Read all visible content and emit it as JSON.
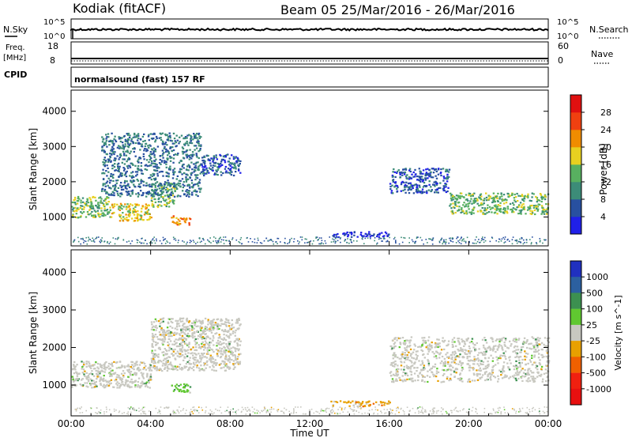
{
  "header": {
    "station": "Kodiak (fitACF)",
    "beam_info": "Beam 05  25/Mar/2016 - 26/Mar/2016"
  },
  "top_panels": {
    "nsky_label": "N.Sky",
    "nsearch_label": "N.Search",
    "freq_label_1": "Freq.",
    "freq_label_2": "[MHz]",
    "nave_label": "Nave",
    "cpid_label": "CPID",
    "noise_ticks_left": [
      "10^5",
      "10^0"
    ],
    "noise_ticks_right": [
      "10^5",
      "10^0"
    ],
    "freq_ticks": [
      "18",
      "8"
    ],
    "nave_ticks": [
      "60",
      "0"
    ],
    "cpid_text": "normalsound (fast) 157 RF"
  },
  "chart_data": [
    {
      "type": "heatmap",
      "name": "power-panel",
      "ylabel": "Slant Range [km]",
      "ylim": [
        180,
        4600
      ],
      "y_ticks": [
        "1000",
        "2000",
        "3000",
        "4000"
      ],
      "colorbar": {
        "label": "Power [dB]",
        "ticks": [
          "4",
          "8",
          "12",
          "16",
          "20",
          "24",
          "28"
        ],
        "colors": [
          "#2020e8",
          "#2850a0",
          "#3c8c78",
          "#58b060",
          "#e8d020",
          "#f08c00",
          "#f04010",
          "#e01010"
        ]
      },
      "regions": [
        {
          "t": [
            0.0,
            2.0
          ],
          "range": [
            1000,
            1600
          ],
          "level": 16
        },
        {
          "t": [
            2.0,
            4.0
          ],
          "range": [
            900,
            1400
          ],
          "level": 20
        },
        {
          "t": [
            4.0,
            5.2
          ],
          "range": [
            1300,
            2000
          ],
          "level": 16
        },
        {
          "t": [
            5.0,
            6.0
          ],
          "range": [
            800,
            1050
          ],
          "level": 24
        },
        {
          "t": [
            1.5,
            6.5
          ],
          "range": [
            1600,
            3400
          ],
          "level": 10
        },
        {
          "t": [
            6.5,
            8.5
          ],
          "range": [
            2200,
            2800
          ],
          "level": 8
        },
        {
          "t": [
            13.0,
            16.0
          ],
          "range": [
            450,
            600
          ],
          "level": 6
        },
        {
          "t": [
            16.0,
            19.0
          ],
          "range": [
            1700,
            2400
          ],
          "level": 8
        },
        {
          "t": [
            19.0,
            24.0
          ],
          "range": [
            1100,
            1700
          ],
          "level": 16
        }
      ]
    },
    {
      "type": "heatmap",
      "name": "velocity-panel",
      "ylabel": "Slant Range [km]",
      "xlabel": "Time UT",
      "ylim": [
        180,
        4600
      ],
      "y_ticks": [
        "1000",
        "2000",
        "3000",
        "4000"
      ],
      "x_ticks": [
        "00:00",
        "04:00",
        "08:00",
        "12:00",
        "16:00",
        "20:00",
        "00:00"
      ],
      "colorbar": {
        "label": "Velocity [m s^-1]",
        "ticks": [
          "1000",
          "500",
          "100",
          "25",
          "-25",
          "-100",
          "-500",
          "-1000"
        ],
        "colors": [
          "#2030c0",
          "#2c60a0",
          "#3c9050",
          "#60c830",
          "#c8c8c0",
          "#e8a000",
          "#f06000",
          "#f02010",
          "#e81010"
        ]
      },
      "regions": [
        {
          "t": [
            0.0,
            4.0
          ],
          "range": [
            950,
            1650
          ],
          "class": "ground"
        },
        {
          "t": [
            4.0,
            8.5
          ],
          "range": [
            1400,
            2800
          ],
          "class": "ground"
        },
        {
          "t": [
            5.0,
            6.0
          ],
          "range": [
            800,
            1050
          ],
          "class": "positive"
        },
        {
          "t": [
            13.0,
            16.0
          ],
          "range": [
            450,
            600
          ],
          "class": "negative"
        },
        {
          "t": [
            16.0,
            24.0
          ],
          "range": [
            1100,
            2300
          ],
          "class": "ground"
        }
      ]
    }
  ]
}
